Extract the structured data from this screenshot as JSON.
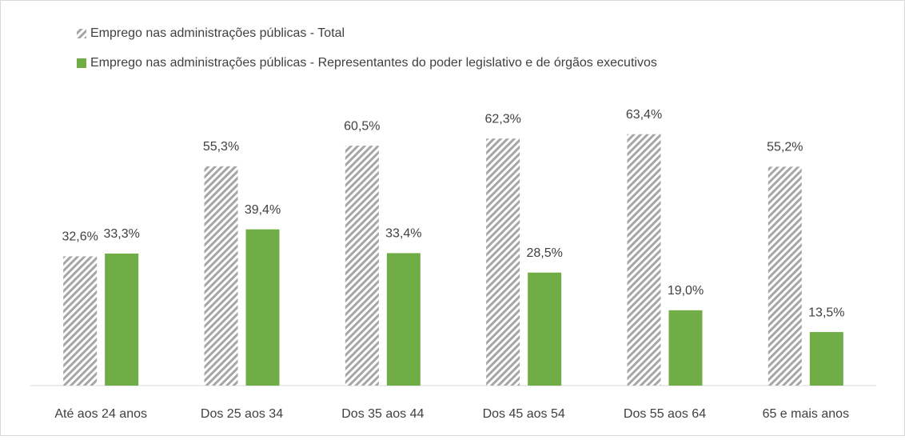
{
  "chart_data": {
    "type": "bar",
    "categories": [
      "Até aos 24 anos",
      "Dos 25 aos 34",
      "Dos 35 aos 44",
      "Dos 45 aos 54",
      "Dos 55 aos 64",
      "65 e mais anos"
    ],
    "series": [
      {
        "name": "Emprego nas administrações públicas  - Total",
        "color": "#a6a6a6",
        "hatch": true,
        "values": [
          32.6,
          55.3,
          60.5,
          62.3,
          63.4,
          55.2
        ],
        "value_labels": [
          "32,6%",
          "55,3%",
          "60,5%",
          "62,3%",
          "63,4%",
          "55,2%"
        ]
      },
      {
        "name": "Emprego nas administrações públicas  - Representantes do poder legislativo e de órgãos executivos",
        "color": "#70ad47",
        "hatch": false,
        "values": [
          33.3,
          39.4,
          33.4,
          28.5,
          19.0,
          13.5
        ],
        "value_labels": [
          "33,3%",
          "39,4%",
          "33,4%",
          "28,5%",
          "19,0%",
          "13,5%"
        ]
      }
    ],
    "ylim": [
      0,
      70
    ],
    "legend": "top-left"
  }
}
